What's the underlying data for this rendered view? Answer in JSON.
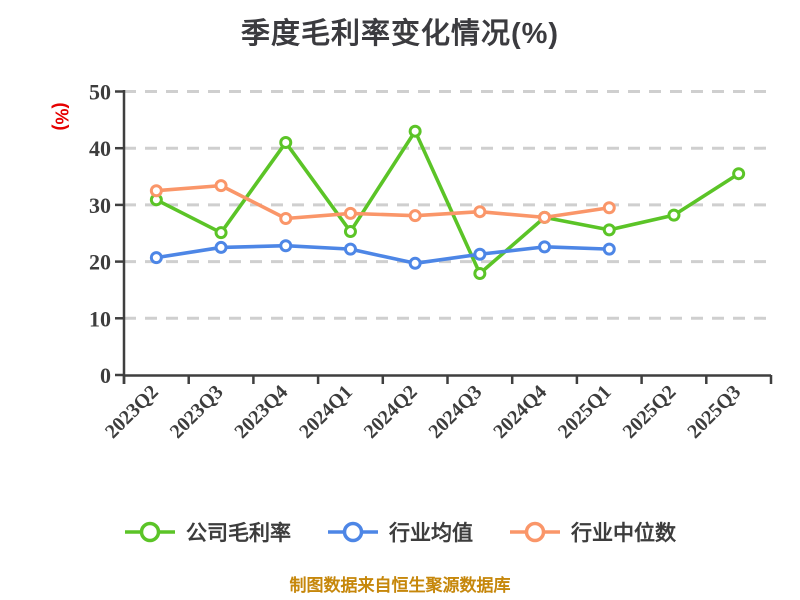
{
  "title": "季度毛利率变化情况(%)",
  "source_note": "制图数据来自恒生聚源数据库",
  "colors": {
    "background": "#ffffff",
    "title": "#3b3b3f",
    "axis": "#3f3f3f",
    "tick_label": "#3d3d3d",
    "gridline": "#cfcfcf",
    "y_unit_label": "#e60000",
    "source_note": "#c6870b",
    "legend_text": "#3d3d3d",
    "series_company": "#5bc427",
    "series_industry_mean": "#4d86e6",
    "series_industry_median": "#fa9669",
    "marker_fill": "#ffffff"
  },
  "chart_data": {
    "type": "line",
    "title": "季度毛利率变化情况(%)",
    "xlabel": "",
    "ylabel": "(%)",
    "ylim": [
      0,
      50
    ],
    "y_ticks": [
      0,
      10,
      20,
      30,
      40,
      50
    ],
    "grid": "horizontal dashed gridlines",
    "legend_position": "bottom",
    "marker": "circle, white fill, colored ring",
    "categories": [
      "2023Q2",
      "2023Q3",
      "2023Q4",
      "2024Q1",
      "2024Q2",
      "2024Q3",
      "2024Q4",
      "2025Q1",
      "2025Q2",
      "2025Q3"
    ],
    "series": [
      {
        "name": "公司毛利率",
        "color": "#5bc427",
        "values": [
          30.9,
          25.1,
          41.0,
          25.3,
          43.0,
          17.9,
          27.8,
          25.6,
          28.2,
          35.5
        ]
      },
      {
        "name": "行业均值",
        "color": "#4d86e6",
        "values": [
          20.7,
          22.5,
          22.8,
          22.2,
          19.7,
          21.3,
          22.6,
          22.2,
          null,
          null
        ]
      },
      {
        "name": "行业中位数",
        "color": "#fa9669",
        "values": [
          32.5,
          33.4,
          27.6,
          28.5,
          28.1,
          28.8,
          27.8,
          29.5,
          null,
          null
        ]
      }
    ]
  }
}
